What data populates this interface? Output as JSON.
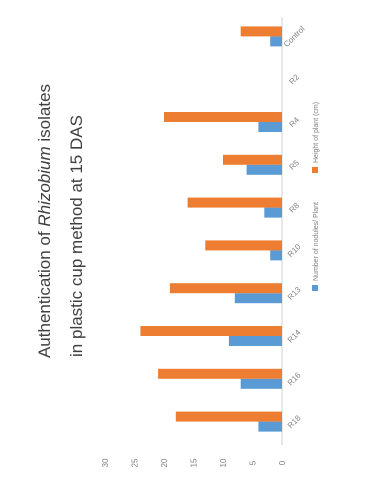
{
  "chart_data": {
    "type": "bar",
    "title_parts": [
      "Authentication of ",
      "Rhizobium",
      " isolates",
      "in plastic cup method at 15 DAS"
    ],
    "categories": [
      "R18",
      "R16",
      "R14",
      "R13",
      "R10",
      "R8",
      "R5",
      "R4",
      "R2",
      "Control"
    ],
    "series": [
      {
        "name": "Number of nodules/ Plant",
        "color": "#5b9bd5",
        "values": [
          4,
          7,
          9,
          8,
          2,
          3,
          6,
          4,
          0,
          2
        ]
      },
      {
        "name": "Height of plant (cm)",
        "color": "#ed7d31",
        "values": [
          18,
          21,
          24,
          19,
          13,
          16,
          10,
          20,
          0,
          7
        ]
      }
    ],
    "ylim": [
      0,
      30
    ],
    "yticks": [
      0,
      5,
      10,
      15,
      20,
      25,
      30
    ],
    "legend_position": "bottom",
    "gridlines": false
  }
}
